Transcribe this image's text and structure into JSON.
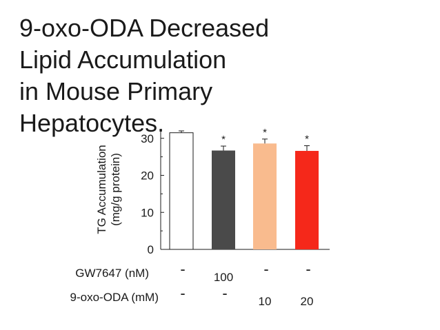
{
  "title_lines": [
    "9-oxo-ODA Decreased",
    "Lipid Accumulation",
    "in Mouse Primary",
    "Hepatocytes."
  ],
  "chart_data": {
    "type": "bar",
    "ylabel_lines": [
      "TG Accumulation",
      "(mg/g protein)"
    ],
    "ylim": [
      0,
      32
    ],
    "yticks": [
      0,
      10,
      20,
      30
    ],
    "grid": false,
    "categories": [
      "-/-",
      "100/-",
      "-/10",
      "-/20"
    ],
    "values": [
      31.5,
      26.7,
      28.6,
      26.6
    ],
    "errors": [
      0.5,
      1.2,
      1.2,
      1.4
    ],
    "significance": [
      "",
      "*",
      "*",
      "*"
    ],
    "bar_colors": [
      "#ffffff",
      "#4a4a4a",
      "#f9bb8e",
      "#f5281a"
    ],
    "conditions": [
      {
        "label": "GW7647 (nM)",
        "values": [
          "-",
          "100",
          "-",
          "-"
        ]
      },
      {
        "label": "9-oxo-ODA (mM)",
        "values": [
          "-",
          "-",
          "10",
          "20"
        ]
      }
    ]
  }
}
